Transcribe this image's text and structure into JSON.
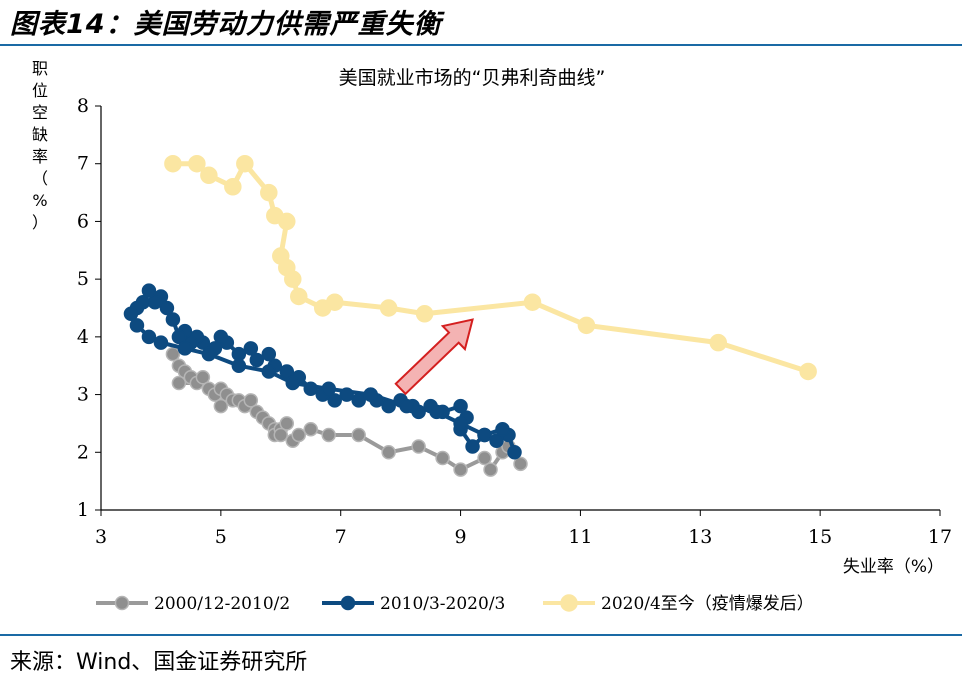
{
  "figure": {
    "title": "图表14：美国劳动力供需严重失衡",
    "source": "来源：Wind、国金证券研究所"
  },
  "colors": {
    "rule": "#1a6aa5",
    "arrow_fill": "#f4b3b3",
    "arrow_stroke": "#d42020"
  },
  "chart_data": {
    "type": "line",
    "title": "美国就业市场的“贝弗利奇曲线”",
    "xlabel": "失业率（%）",
    "ylabel": "职位空缺率（%）",
    "xlim": [
      3,
      17
    ],
    "ylim": [
      1,
      8
    ],
    "xticks": [
      3,
      5,
      7,
      9,
      11,
      13,
      15,
      17
    ],
    "yticks": [
      1,
      2,
      3,
      4,
      5,
      6,
      7,
      8
    ],
    "grid": false,
    "legend_position": "bottom",
    "series": [
      {
        "name": "2000/12-2010/2",
        "color": "#999999",
        "points": [
          [
            4.2,
            3.7
          ],
          [
            4.3,
            3.5
          ],
          [
            4.4,
            3.4
          ],
          [
            4.5,
            3.3
          ],
          [
            4.3,
            3.2
          ],
          [
            4.6,
            3.2
          ],
          [
            4.7,
            3.3
          ],
          [
            4.8,
            3.1
          ],
          [
            4.9,
            3.0
          ],
          [
            5.0,
            3.1
          ],
          [
            5.1,
            3.0
          ],
          [
            5.0,
            2.8
          ],
          [
            5.2,
            2.9
          ],
          [
            5.3,
            2.9
          ],
          [
            5.4,
            2.8
          ],
          [
            5.5,
            2.9
          ],
          [
            5.6,
            2.7
          ],
          [
            5.7,
            2.6
          ],
          [
            5.8,
            2.5
          ],
          [
            5.9,
            2.4
          ],
          [
            5.9,
            2.3
          ],
          [
            6.0,
            2.4
          ],
          [
            6.1,
            2.5
          ],
          [
            6.0,
            2.3
          ],
          [
            6.2,
            2.2
          ],
          [
            6.3,
            2.3
          ],
          [
            6.5,
            2.4
          ],
          [
            6.8,
            2.3
          ],
          [
            7.3,
            2.3
          ],
          [
            7.8,
            2.0
          ],
          [
            8.3,
            2.1
          ],
          [
            8.7,
            1.9
          ],
          [
            9.0,
            1.7
          ],
          [
            9.4,
            1.9
          ],
          [
            9.5,
            1.7
          ],
          [
            9.7,
            2.0
          ],
          [
            9.8,
            2.1
          ],
          [
            10.0,
            1.8
          ]
        ]
      },
      {
        "name": "2010/3-2020/3",
        "color": "#0d4a80",
        "points": [
          [
            9.9,
            2.0
          ],
          [
            9.8,
            2.3
          ],
          [
            9.6,
            2.2
          ],
          [
            9.4,
            2.3
          ],
          [
            9.2,
            2.1
          ],
          [
            9.0,
            2.4
          ],
          [
            9.1,
            2.6
          ],
          [
            9.0,
            2.8
          ],
          [
            8.7,
            2.7
          ],
          [
            8.5,
            2.8
          ],
          [
            8.3,
            2.7
          ],
          [
            8.2,
            2.8
          ],
          [
            8.0,
            2.9
          ],
          [
            7.8,
            2.8
          ],
          [
            7.6,
            2.9
          ],
          [
            7.5,
            3.0
          ],
          [
            7.3,
            2.9
          ],
          [
            7.1,
            3.0
          ],
          [
            6.9,
            2.9
          ],
          [
            6.7,
            3.0
          ],
          [
            6.5,
            3.1
          ],
          [
            6.3,
            3.3
          ],
          [
            6.1,
            3.4
          ],
          [
            5.9,
            3.5
          ],
          [
            5.8,
            3.7
          ],
          [
            5.6,
            3.6
          ],
          [
            5.5,
            3.8
          ],
          [
            5.3,
            3.7
          ],
          [
            5.1,
            3.9
          ],
          [
            5.0,
            4.0
          ],
          [
            4.9,
            3.8
          ],
          [
            4.7,
            3.9
          ],
          [
            4.6,
            4.0
          ],
          [
            4.5,
            3.9
          ],
          [
            4.4,
            4.1
          ],
          [
            4.3,
            4.0
          ],
          [
            4.2,
            4.3
          ],
          [
            4.1,
            4.5
          ],
          [
            4.0,
            4.7
          ],
          [
            3.9,
            4.6
          ],
          [
            3.8,
            4.8
          ],
          [
            3.7,
            4.6
          ],
          [
            3.6,
            4.5
          ],
          [
            3.5,
            4.4
          ],
          [
            3.6,
            4.2
          ],
          [
            3.8,
            4.0
          ],
          [
            4.0,
            3.9
          ],
          [
            4.4,
            3.8
          ],
          [
            4.8,
            3.7
          ],
          [
            5.3,
            3.5
          ],
          [
            5.8,
            3.4
          ],
          [
            6.2,
            3.2
          ],
          [
            6.8,
            3.1
          ],
          [
            7.5,
            3.0
          ],
          [
            8.1,
            2.8
          ],
          [
            8.6,
            2.7
          ],
          [
            9.0,
            2.5
          ],
          [
            9.4,
            2.3
          ],
          [
            9.7,
            2.4
          ]
        ]
      },
      {
        "name": "2020/4至今（疫情爆发后）",
        "color": "#fbe6a2",
        "points": [
          [
            14.8,
            3.4
          ],
          [
            13.3,
            3.9
          ],
          [
            11.1,
            4.2
          ],
          [
            10.2,
            4.6
          ],
          [
            8.4,
            4.4
          ],
          [
            7.8,
            4.5
          ],
          [
            6.9,
            4.6
          ],
          [
            6.7,
            4.5
          ],
          [
            6.3,
            4.7
          ],
          [
            6.2,
            5.0
          ],
          [
            6.1,
            5.2
          ],
          [
            6.0,
            5.4
          ],
          [
            6.1,
            6.0
          ],
          [
            5.9,
            6.1
          ],
          [
            5.8,
            6.5
          ],
          [
            5.4,
            7.0
          ],
          [
            5.2,
            6.6
          ],
          [
            4.8,
            6.8
          ],
          [
            4.6,
            7.0
          ],
          [
            4.2,
            7.0
          ]
        ]
      }
    ],
    "annotation": {
      "type": "arrow",
      "from": [
        8.0,
        3.1
      ],
      "to": [
        9.2,
        4.3
      ]
    }
  }
}
